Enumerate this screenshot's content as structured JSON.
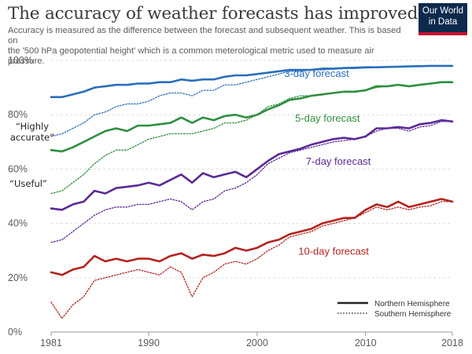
{
  "header": {
    "title": "The accuracy of weather forecasts has improved",
    "subtitle_line1": "Accuracy is measured as the difference between the forecast and subsequent weather. This is based on",
    "subtitle_line2": "the '500 hPa geopotential height' which is a common meterological metric used to measure air pressure.",
    "logo_line1": "Our World",
    "logo_line2": "in Data"
  },
  "annotations": {
    "highly_accurate_1": "“Highly",
    "highly_accurate_2": "accurate”",
    "useful": "“Useful”"
  },
  "colors": {
    "3-day": "#2a6ebb",
    "5-day": "#2f8f3e",
    "7-day": "#5b2a96",
    "10-day": "#b3231f"
  },
  "chart_data": {
    "type": "line",
    "title": "The accuracy of weather forecasts has improved",
    "xlim": [
      1981,
      2018
    ],
    "ylim": [
      0,
      100
    ],
    "x_ticks": [
      1981,
      1990,
      2000,
      2010,
      2018
    ],
    "y_ticks": [
      0,
      20,
      40,
      60,
      80,
      100
    ],
    "y_tick_labels": [
      "0%",
      "20%",
      "40%",
      "60%",
      "80%",
      "100%"
    ],
    "grid": true,
    "legend": {
      "placement": "bottom-right",
      "entries": [
        {
          "style": "solid",
          "label": "Northern Hemisphere"
        },
        {
          "style": "dotted",
          "label": "Southern Hemisphere"
        }
      ]
    },
    "x": [
      1981,
      1982,
      1983,
      1984,
      1985,
      1986,
      1987,
      1988,
      1989,
      1990,
      1991,
      1992,
      1993,
      1994,
      1995,
      1996,
      1997,
      1998,
      1999,
      2000,
      2001,
      2002,
      2003,
      2004,
      2005,
      2006,
      2007,
      2008,
      2009,
      2010,
      2011,
      2012,
      2013,
      2014,
      2015,
      2016,
      2017,
      2018
    ],
    "series": [
      {
        "key": "3-day",
        "name": "3-day forecast",
        "hemisphere": "Northern Hemisphere",
        "values": [
          86.5,
          86.5,
          87.5,
          88.5,
          90,
          90.5,
          91,
          91,
          91.5,
          91.5,
          92,
          92,
          93,
          92.5,
          93,
          93,
          94,
          94.5,
          94.5,
          95,
          95.5,
          96,
          96.5,
          96.5,
          96.5,
          97,
          97,
          97.2,
          97.3,
          97.5,
          97.5,
          97.6,
          97.7,
          97.8,
          97.9,
          98,
          98,
          98
        ]
      },
      {
        "key": "3-day",
        "name": "3-day forecast",
        "hemisphere": "Southern Hemisphere",
        "values": [
          72,
          73,
          75,
          77,
          80,
          81,
          83,
          84,
          84,
          85,
          87,
          88,
          88,
          87,
          89,
          89,
          91,
          91,
          92,
          93,
          94,
          95,
          96,
          96,
          96.5,
          96.5,
          96.8,
          97,
          97,
          97.2,
          97.3,
          97.5,
          97.6,
          97.7,
          97.8,
          97.9,
          98,
          98
        ]
      },
      {
        "key": "5-day",
        "name": "5-day forecast",
        "hemisphere": "Northern Hemisphere",
        "values": [
          67,
          66.5,
          68,
          70,
          72,
          74,
          75,
          74,
          76,
          76,
          76.5,
          77,
          79,
          77,
          79,
          78,
          79.5,
          80,
          79,
          80,
          82,
          83.5,
          85.5,
          86,
          87,
          87.5,
          88,
          88.5,
          88.5,
          89,
          90.5,
          90.5,
          91,
          90.5,
          91,
          91.5,
          92,
          92
        ]
      },
      {
        "key": "5-day",
        "name": "5-day forecast",
        "hemisphere": "Southern Hemisphere",
        "values": [
          51,
          52,
          55,
          58,
          62,
          65,
          67,
          67,
          69,
          71,
          72,
          73,
          73,
          73,
          74,
          75,
          77,
          77,
          78,
          80,
          83,
          84,
          86,
          87,
          87,
          87.5,
          88,
          88.5,
          88.5,
          89,
          90,
          90.5,
          91,
          90.5,
          91,
          91.5,
          92,
          92
        ]
      },
      {
        "key": "7-day",
        "name": "7-day forecast",
        "hemisphere": "Northern Hemisphere",
        "values": [
          45.5,
          45,
          47,
          48,
          52,
          51,
          53,
          53.5,
          54,
          55,
          54,
          56,
          58,
          55,
          58.5,
          57,
          58,
          59,
          57,
          60,
          63,
          65.5,
          66.5,
          67.5,
          69,
          70,
          71,
          71.5,
          71,
          72,
          75,
          75,
          75.5,
          75,
          76.5,
          77,
          78,
          77.5
        ]
      },
      {
        "key": "7-day",
        "name": "7-day forecast",
        "hemisphere": "Southern Hemisphere",
        "values": [
          33,
          34,
          37,
          40,
          43,
          45,
          46,
          46,
          47,
          47,
          48,
          49,
          48,
          45,
          48,
          49,
          52,
          53,
          55,
          58,
          62,
          64,
          66,
          67,
          68,
          69,
          70,
          70.5,
          71,
          72,
          74,
          75,
          75,
          74,
          75.5,
          76,
          77.5,
          77.5
        ]
      },
      {
        "key": "10-day",
        "name": "10-day forecast",
        "hemisphere": "Northern Hemisphere",
        "values": [
          22,
          21,
          23,
          24,
          28,
          26,
          27,
          26,
          27,
          27,
          26,
          28,
          29,
          27,
          28.5,
          28,
          29,
          31,
          30,
          31,
          33,
          34,
          36,
          37,
          38,
          40,
          41,
          42,
          42,
          45,
          47,
          46,
          48,
          46,
          47,
          48,
          49,
          48
        ]
      },
      {
        "key": "10-day",
        "name": "10-day forecast",
        "hemisphere": "Southern Hemisphere",
        "values": [
          11,
          5,
          10,
          13,
          19,
          20,
          21,
          22,
          23,
          22,
          21,
          24,
          22,
          13,
          20,
          22,
          25,
          26,
          25,
          27,
          30,
          32,
          35,
          36,
          37,
          39,
          40,
          41,
          42,
          44,
          46,
          45,
          46,
          45,
          46,
          46.5,
          48,
          48
        ]
      }
    ],
    "series_labels": [
      {
        "key": "3-day",
        "text": "3-day forecast",
        "at_x": 2002.5,
        "at_y": 94
      },
      {
        "key": "5-day",
        "text": "5-day forecast",
        "at_x": 2003.5,
        "at_y": 77.5
      },
      {
        "key": "7-day",
        "text": "7-day forecast",
        "at_x": 2004.5,
        "at_y": 61.5
      },
      {
        "key": "10-day",
        "text": "10-day forecast",
        "at_x": 2003.8,
        "at_y": 28.5
      }
    ]
  }
}
